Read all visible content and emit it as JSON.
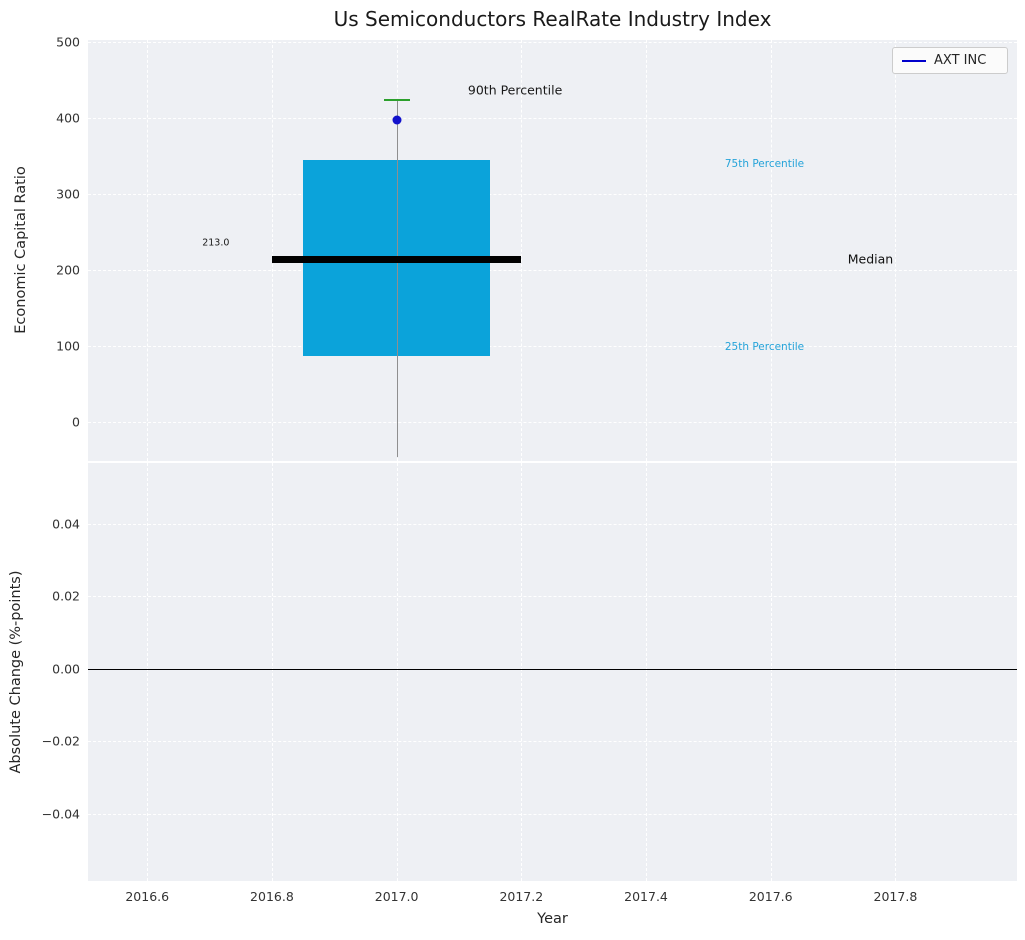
{
  "title": "Us Semiconductors RealRate Industry Index",
  "xlabel": "Year",
  "legend": {
    "label": "AXT INC",
    "line_color": "#0000cc"
  },
  "colors": {
    "panel_bg": "#eef0f4",
    "grid": "#ffffff",
    "box_fill": "#0ba3da",
    "median": "#000000",
    "whisker": "#8f8f8f",
    "cap": "#2ca02c",
    "point": "#1212cc",
    "percentile_text": "#25a3d9",
    "text": "#262626"
  },
  "chart_data": {
    "type": "boxplot",
    "title": "Us Semiconductors RealRate Industry Index",
    "grid": "dashed-white-on-light-gray",
    "legend_position": "top-right",
    "x_axis": {
      "label": "Year",
      "lim": [
        2016.505,
        2017.995
      ],
      "ticks": [
        {
          "v": 2016.6,
          "label": "2016.6"
        },
        {
          "v": 2016.8,
          "label": "2016.8"
        },
        {
          "v": 2017.0,
          "label": "2017.0"
        },
        {
          "v": 2017.2,
          "label": "2017.2"
        },
        {
          "v": 2017.4,
          "label": "2017.4"
        },
        {
          "v": 2017.6,
          "label": "2017.6"
        },
        {
          "v": 2017.8,
          "label": "2017.8"
        }
      ]
    },
    "panels": [
      {
        "id": "top",
        "ylabel": "Economic Capital Ratio",
        "ylim": [
          -52,
          503
        ],
        "yticks": [
          {
            "v": 0,
            "label": "0"
          },
          {
            "v": 100,
            "label": "100"
          },
          {
            "v": 200,
            "label": "200"
          },
          {
            "v": 300,
            "label": "300"
          },
          {
            "v": 400,
            "label": "400"
          },
          {
            "v": 500,
            "label": "500"
          }
        ]
      },
      {
        "id": "bottom",
        "ylabel": "Absolute Change (%-points)",
        "ylim": [
          -0.0585,
          0.0568
        ],
        "zero_line": 0.0,
        "yticks": [
          {
            "v": -0.04,
            "label": "−0.04"
          },
          {
            "v": -0.02,
            "label": "−0.02"
          },
          {
            "v": 0.0,
            "label": "0.00"
          },
          {
            "v": 0.02,
            "label": "0.02"
          },
          {
            "v": 0.04,
            "label": "0.04"
          }
        ]
      }
    ],
    "box": {
      "x_center": 2017.0,
      "box_x": [
        2016.85,
        2017.15
      ],
      "q1": 87,
      "q3": 345,
      "median": 213.0,
      "median_x": [
        2016.8,
        2017.2
      ],
      "whisker_low": -47,
      "whisker_high": 425,
      "percentile_90": 425,
      "percentile_75": 345,
      "percentile_25": 87,
      "point": {
        "series": "AXT INC",
        "x": 2017.0,
        "y": 397
      }
    },
    "annotations": [
      {
        "text": "213.0",
        "x": 2016.71,
        "y": 235,
        "color": "#1a1a1a",
        "size": 9.5
      },
      {
        "text": "90th Percentile",
        "x": 2017.19,
        "y": 437,
        "color": "#1a1a1a",
        "size": 12.5
      },
      {
        "text": "75th Percentile",
        "x": 2017.59,
        "y": 340,
        "color": "#25a3d9",
        "size": 10.5
      },
      {
        "text": "25th Percentile",
        "x": 2017.59,
        "y": 98,
        "color": "#25a3d9",
        "size": 10.5
      },
      {
        "text": "Median",
        "x": 2017.76,
        "y": 214,
        "color": "#111111",
        "size": 12.5
      }
    ]
  }
}
